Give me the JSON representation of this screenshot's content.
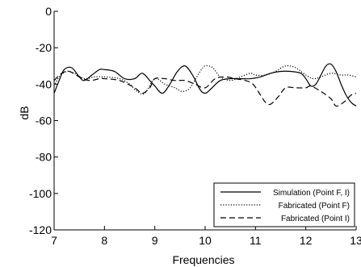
{
  "chart_data": {
    "type": "line",
    "title": "",
    "xlabel": "Frequencies",
    "ylabel": "dB",
    "xlim": [
      7,
      13
    ],
    "ylim": [
      -120,
      0
    ],
    "xticks": [
      7,
      8,
      9,
      10,
      11,
      12,
      13
    ],
    "yticks": [
      0,
      -20,
      -40,
      -60,
      -80,
      -100,
      -120
    ],
    "grid": false,
    "legend_position": "bottom-right",
    "series": [
      {
        "name": "Simulation (Point F, I)",
        "style": "solid",
        "color": "#000000",
        "x": [
          7.0,
          7.1,
          7.2,
          7.35,
          7.5,
          7.6,
          7.75,
          7.9,
          8.0,
          8.2,
          8.4,
          8.6,
          8.75,
          8.9,
          9.0,
          9.15,
          9.3,
          9.45,
          9.6,
          9.75,
          9.9,
          10.0,
          10.1,
          10.3,
          10.5,
          10.7,
          10.9,
          11.1,
          11.3,
          11.5,
          11.7,
          11.9,
          12.0,
          12.1,
          12.2,
          12.3,
          12.4,
          12.5,
          12.6,
          12.7,
          12.8,
          12.9,
          13.0
        ],
        "y": [
          -45,
          -38,
          -32,
          -31,
          -36,
          -38,
          -35,
          -32,
          -32,
          -33,
          -37,
          -37,
          -34,
          -38,
          -41,
          -45,
          -40,
          -33,
          -30,
          -35,
          -43,
          -45,
          -43,
          -38,
          -37,
          -37,
          -37,
          -36,
          -34,
          -33,
          -33,
          -34,
          -37,
          -41,
          -40,
          -35,
          -30,
          -29,
          -33,
          -40,
          -46,
          -50,
          -52
        ]
      },
      {
        "name": "Fabricated (Point F)",
        "style": "dotted",
        "color": "#000000",
        "x": [
          7.0,
          7.1,
          7.25,
          7.4,
          7.6,
          7.8,
          8.0,
          8.3,
          8.5,
          8.65,
          8.8,
          9.0,
          9.2,
          9.4,
          9.55,
          9.7,
          9.9,
          10.0,
          10.15,
          10.3,
          10.5,
          10.7,
          10.9,
          11.0,
          11.2,
          11.4,
          11.6,
          11.8,
          12.0,
          12.15,
          12.3,
          12.5,
          12.7,
          12.85,
          13.0
        ],
        "y": [
          -41,
          -36,
          -33,
          -34,
          -37,
          -36,
          -36,
          -37,
          -40,
          -44,
          -45,
          -37,
          -40,
          -42,
          -44,
          -42,
          -33,
          -30,
          -31,
          -36,
          -38,
          -36,
          -34,
          -35,
          -35,
          -33,
          -30,
          -31,
          -35,
          -37,
          -36,
          -34,
          -35,
          -35,
          -36
        ]
      },
      {
        "name": "Fabricated (Point I)",
        "style": "dashed",
        "color": "#000000",
        "x": [
          7.0,
          7.15,
          7.3,
          7.5,
          7.7,
          7.9,
          8.0,
          8.3,
          8.6,
          8.75,
          8.9,
          9.0,
          9.2,
          9.4,
          9.6,
          9.8,
          10.0,
          10.2,
          10.4,
          10.6,
          10.8,
          10.95,
          11.1,
          11.2,
          11.3,
          11.45,
          11.6,
          11.8,
          12.0,
          12.1,
          12.3,
          12.5,
          12.6,
          12.75,
          12.9,
          13.0
        ],
        "y": [
          -38,
          -34,
          -33,
          -36,
          -38,
          -37,
          -37,
          -38,
          -42,
          -45,
          -42,
          -37,
          -37,
          -38,
          -38,
          -40,
          -42,
          -37,
          -36,
          -37,
          -38,
          -40,
          -46,
          -50,
          -51,
          -47,
          -42,
          -42,
          -42,
          -41,
          -44,
          -48,
          -52,
          -50,
          -46,
          -45
        ]
      }
    ]
  }
}
